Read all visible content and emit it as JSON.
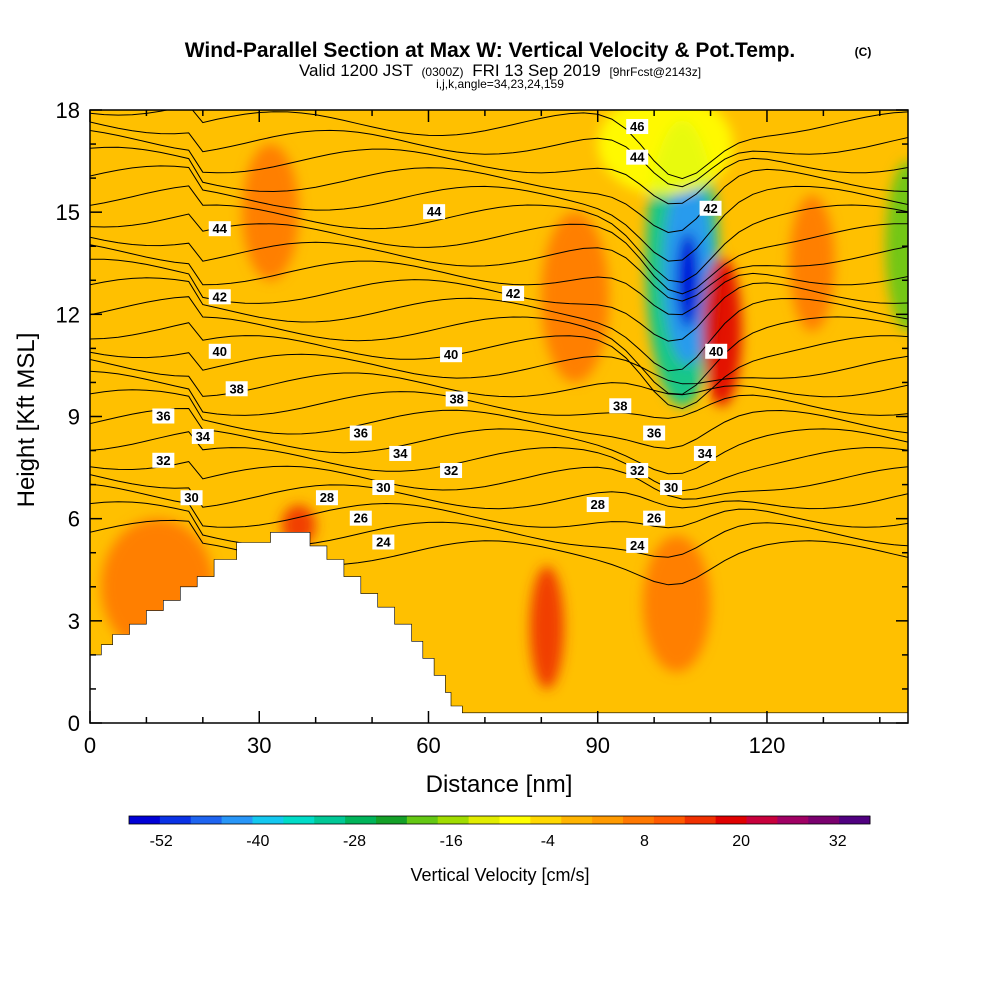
{
  "title": {
    "main": "Wind-Parallel Section at Max W: Vertical Velocity & Pot.Temp.",
    "copyright": "(C)",
    "valid_prefix": "Valid 1200 JST",
    "valid_utc": "(0300Z)",
    "valid_date": "FRI 13 Sep 2019",
    "forecast": "[9hrFcst@2143z]",
    "params": "i,j,k,angle=34,23,24,159"
  },
  "chart_data": {
    "type": "heatmap",
    "xlabel": "Distance [nm]",
    "ylabel": "Height [Kft MSL]",
    "xlim": [
      0,
      145
    ],
    "ylim": [
      0,
      18
    ],
    "x_ticks": [
      0,
      30,
      60,
      90,
      120
    ],
    "y_ticks": [
      0,
      3,
      6,
      9,
      12,
      15,
      18
    ],
    "field_label": "Vertical Velocity [cm/s]",
    "colorbar": {
      "label": "Vertical Velocity [cm/s]",
      "min": -56,
      "max": 36,
      "step": 4,
      "tick_values": [
        -52,
        -40,
        -28,
        -16,
        -4,
        8,
        20,
        32
      ],
      "colors": [
        "#0000d6",
        "#0a32e6",
        "#1e64f0",
        "#2896f8",
        "#14c8f0",
        "#00dcc8",
        "#00c896",
        "#00b45a",
        "#14a028",
        "#64c814",
        "#a0dc00",
        "#e1ec00",
        "#ffff00",
        "#ffd800",
        "#ffb400",
        "#ff9a00",
        "#ff7800",
        "#ff5a00",
        "#f03000",
        "#e00000",
        "#c8003c",
        "#a00064",
        "#7a006e",
        "#500080"
      ]
    },
    "terrain_profile": [
      [
        0,
        2.0
      ],
      [
        2,
        2.0
      ],
      [
        2,
        2.3
      ],
      [
        4,
        2.3
      ],
      [
        4,
        2.6
      ],
      [
        7,
        2.6
      ],
      [
        7,
        2.9
      ],
      [
        10,
        2.9
      ],
      [
        10,
        3.3
      ],
      [
        13,
        3.3
      ],
      [
        13,
        3.6
      ],
      [
        16,
        3.6
      ],
      [
        16,
        4.0
      ],
      [
        19,
        4.0
      ],
      [
        19,
        4.3
      ],
      [
        22,
        4.3
      ],
      [
        22,
        4.8
      ],
      [
        26,
        4.8
      ],
      [
        26,
        5.3
      ],
      [
        32,
        5.3
      ],
      [
        32,
        5.6
      ],
      [
        39,
        5.6
      ],
      [
        39,
        5.2
      ],
      [
        42,
        5.2
      ],
      [
        42,
        4.8
      ],
      [
        45,
        4.8
      ],
      [
        45,
        4.3
      ],
      [
        48,
        4.3
      ],
      [
        48,
        3.8
      ],
      [
        51,
        3.8
      ],
      [
        51,
        3.4
      ],
      [
        54,
        3.4
      ],
      [
        54,
        2.9
      ],
      [
        57,
        2.9
      ],
      [
        57,
        2.4
      ],
      [
        59,
        2.4
      ],
      [
        59,
        1.9
      ],
      [
        61,
        1.9
      ],
      [
        61,
        1.4
      ],
      [
        63,
        1.4
      ],
      [
        63,
        0.9
      ],
      [
        64,
        0.9
      ],
      [
        64,
        0.5
      ],
      [
        66,
        0.5
      ],
      [
        66,
        0.3
      ],
      [
        145,
        0.3
      ]
    ],
    "field_features": [
      {
        "x": 105,
        "y": 13.5,
        "rx": 6.5,
        "ry": 4.2,
        "w": -30
      },
      {
        "x": 106,
        "y": 13.3,
        "rx": 4.5,
        "ry": 2.8,
        "w": -44
      },
      {
        "x": 106,
        "y": 13.0,
        "rx": 2.0,
        "ry": 1.4,
        "w": -56
      },
      {
        "x": 112,
        "y": 11.5,
        "rx": 3.5,
        "ry": 2.2,
        "w": 20
      },
      {
        "x": 81,
        "y": 2.8,
        "rx": 3.0,
        "ry": 1.8,
        "w": 18
      },
      {
        "x": 37,
        "y": 5.8,
        "rx": 3.0,
        "ry": 0.6,
        "w": 18
      },
      {
        "x": 145,
        "y": 14.0,
        "rx": 4.0,
        "ry": 2.5,
        "w": -20
      },
      {
        "x": 102,
        "y": 17.0,
        "rx": 12.0,
        "ry": 1.5,
        "w": -8
      },
      {
        "x": 86,
        "y": 12.5,
        "rx": 6.0,
        "ry": 2.5,
        "w": 10
      },
      {
        "x": 128,
        "y": 13.5,
        "rx": 4.0,
        "ry": 2.0,
        "w": 10
      },
      {
        "x": 32,
        "y": 15.0,
        "rx": 5.0,
        "ry": 2.0,
        "w": 9
      },
      {
        "x": 104,
        "y": 3.5,
        "rx": 6.0,
        "ry": 2.0,
        "w": 9
      },
      {
        "x": 12,
        "y": 4.0,
        "rx": 10.0,
        "ry": 2.0,
        "w": 8
      }
    ],
    "isentropes": {
      "levels_K": [
        23,
        24,
        25,
        26,
        27,
        28,
        29,
        30,
        31,
        32,
        33,
        34,
        35,
        36,
        37,
        38,
        39,
        40,
        41,
        42,
        43,
        44,
        45,
        46
      ],
      "label_points": [
        {
          "text": "46",
          "x": 97,
          "y": 17.5
        },
        {
          "text": "44",
          "x": 97,
          "y": 16.6
        },
        {
          "text": "44",
          "x": 61,
          "y": 15.0
        },
        {
          "text": "44",
          "x": 23,
          "y": 14.5
        },
        {
          "text": "42",
          "x": 110,
          "y": 15.1
        },
        {
          "text": "42",
          "x": 75,
          "y": 12.6
        },
        {
          "text": "42",
          "x": 23,
          "y": 12.5
        },
        {
          "text": "40",
          "x": 111,
          "y": 10.9
        },
        {
          "text": "40",
          "x": 64,
          "y": 10.8
        },
        {
          "text": "40",
          "x": 23,
          "y": 10.9
        },
        {
          "text": "38",
          "x": 26,
          "y": 9.8
        },
        {
          "text": "38",
          "x": 65,
          "y": 9.5
        },
        {
          "text": "38",
          "x": 94,
          "y": 9.3
        },
        {
          "text": "36",
          "x": 13,
          "y": 9.0
        },
        {
          "text": "36",
          "x": 48,
          "y": 8.5
        },
        {
          "text": "36",
          "x": 100,
          "y": 8.5
        },
        {
          "text": "34",
          "x": 20,
          "y": 8.4
        },
        {
          "text": "34",
          "x": 55,
          "y": 7.9
        },
        {
          "text": "34",
          "x": 109,
          "y": 7.9
        },
        {
          "text": "32",
          "x": 13,
          "y": 7.7
        },
        {
          "text": "32",
          "x": 64,
          "y": 7.4
        },
        {
          "text": "32",
          "x": 97,
          "y": 7.4
        },
        {
          "text": "30",
          "x": 18,
          "y": 6.6
        },
        {
          "text": "30",
          "x": 52,
          "y": 6.9
        },
        {
          "text": "30",
          "x": 103,
          "y": 6.9
        },
        {
          "text": "28",
          "x": 42,
          "y": 6.6
        },
        {
          "text": "28",
          "x": 90,
          "y": 6.4
        },
        {
          "text": "26",
          "x": 48,
          "y": 6.0
        },
        {
          "text": "26",
          "x": 100,
          "y": 6.0
        },
        {
          "text": "24",
          "x": 52,
          "y": 5.3
        },
        {
          "text": "24",
          "x": 97,
          "y": 5.2
        }
      ]
    }
  }
}
